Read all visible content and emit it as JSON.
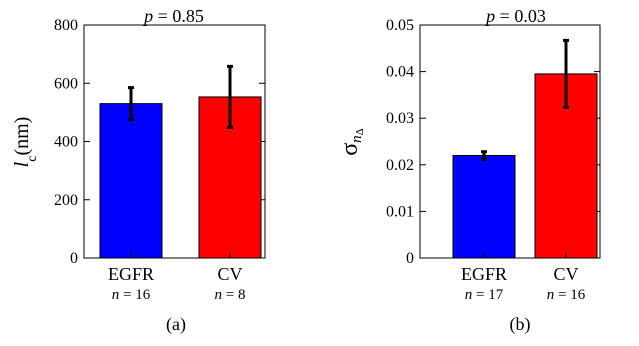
{
  "chart_data": [
    {
      "type": "bar",
      "categories": [
        "EGFR",
        "CV"
      ],
      "sample_sizes": [
        {
          "symbol": "n",
          "eq": " = 16"
        },
        {
          "symbol": "n",
          "eq": " = 8"
        }
      ],
      "values": [
        530,
        553
      ],
      "error": [
        55,
        105
      ],
      "bar_colors": [
        "#0000ff",
        "#ff0000"
      ],
      "ylim": [
        0,
        800
      ],
      "yticks": [
        "0",
        "200",
        "400",
        "600",
        "800"
      ],
      "ytick_values": [
        0,
        200,
        400,
        600,
        800
      ],
      "ylabel": {
        "symbol": "l",
        "sub": "c",
        "rest": "(nm)"
      },
      "annotation": {
        "symbol": "p",
        "rest": " = 0.85"
      },
      "panel_label": "(a)",
      "grid": false
    },
    {
      "type": "bar",
      "categories": [
        "EGFR",
        "CV"
      ],
      "sample_sizes": [
        {
          "symbol": "n",
          "eq": " = 17"
        },
        {
          "symbol": "n",
          "eq": " = 16"
        }
      ],
      "values": [
        0.022,
        0.0395
      ],
      "error": [
        0.0008,
        0.0072
      ],
      "bar_colors": [
        "#0000ff",
        "#ff0000"
      ],
      "ylim": [
        0,
        0.05
      ],
      "yticks": [
        "0",
        "0.01",
        "0.02",
        "0.03",
        "0.04",
        "0.05"
      ],
      "ytick_values": [
        0,
        0.01,
        0.02,
        0.03,
        0.04,
        0.05
      ],
      "ylabel": {
        "symbol": "σ",
        "sub": "n",
        "subsub": "Δ"
      },
      "annotation": {
        "symbol": "p",
        "rest": " = 0.03"
      },
      "panel_label": "(b)",
      "grid": false
    }
  ]
}
